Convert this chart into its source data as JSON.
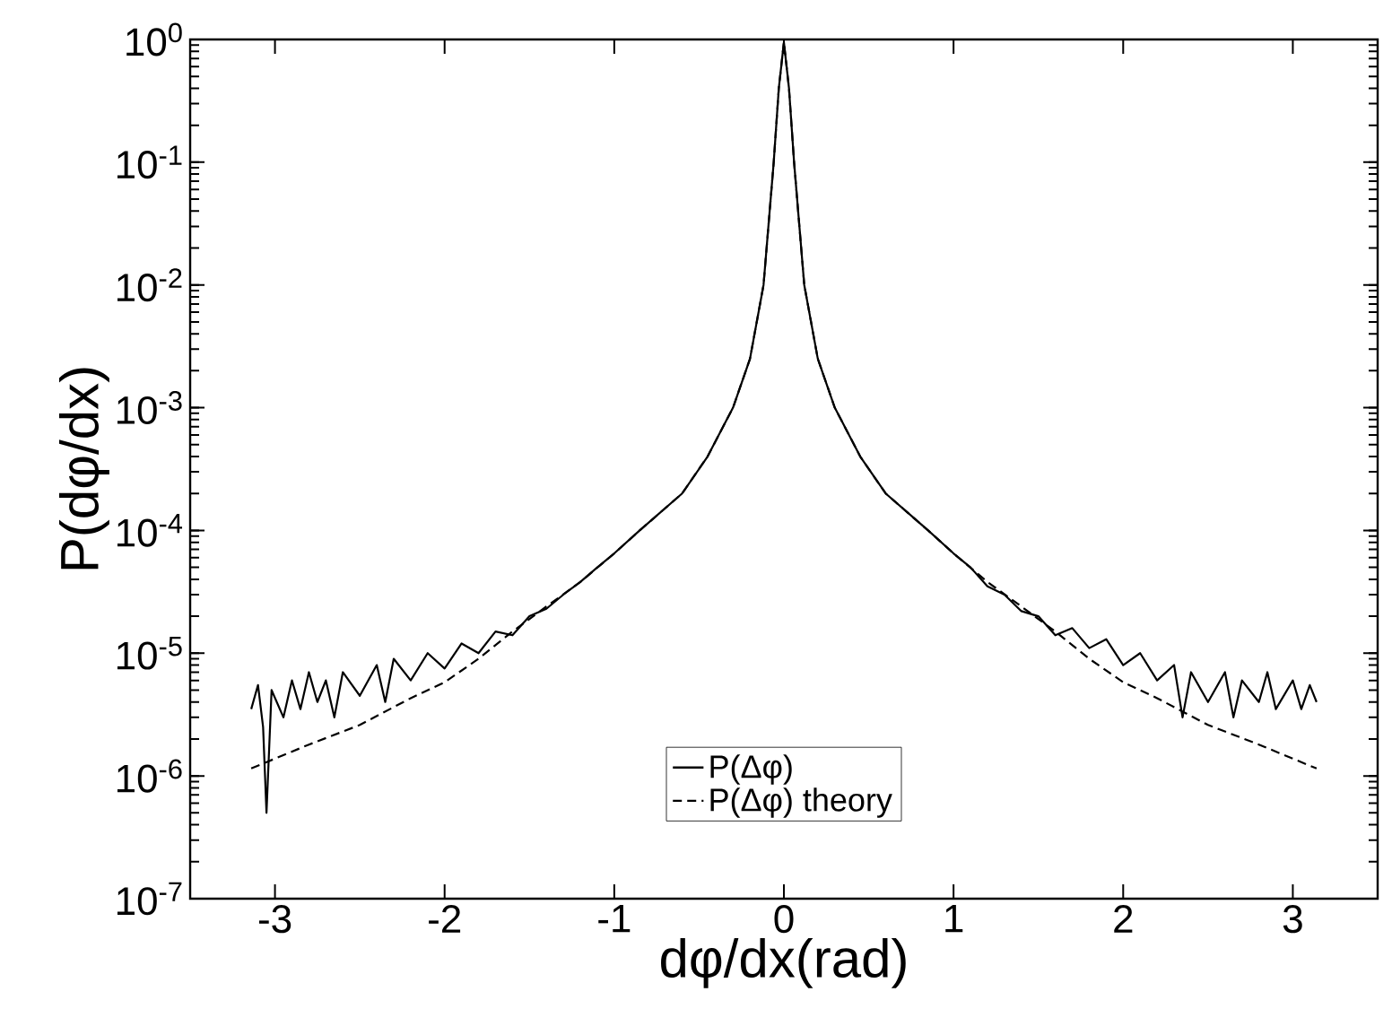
{
  "chart_data": {
    "type": "line",
    "xlabel": "dφ/dx(rad)",
    "ylabel": "P(dφ/dx)",
    "log": "y",
    "grid": false,
    "legend": "bottom",
    "marker": "none",
    "xlim": [
      -3.5,
      3.5
    ],
    "xticks": [
      -3,
      -2,
      -1,
      0,
      1,
      2,
      3
    ],
    "ylim": [
      1e-07,
      1
    ],
    "yticks": [
      {
        "value": 1e-07,
        "label": "10$^{-7}$"
      },
      {
        "value": 1e-06,
        "label": "10$^{-6}$"
      },
      {
        "value": 1e-05,
        "label": "10$^{-5}$"
      },
      {
        "value": 0.0001,
        "label": "10$^{-4}$"
      },
      {
        "value": 0.001,
        "label": "10$^{-3}$"
      },
      {
        "value": 0.01,
        "label": "10$^{-2}$"
      },
      {
        "value": 0.1,
        "label": "10$^{-1}$"
      },
      {
        "value": 1,
        "label": "10$^{0}$"
      }
    ],
    "series": [
      {
        "name": "P(Δφ)",
        "color": "#000000",
        "line_style": "solid",
        "x": [
          -3.14,
          -3.1,
          -3.07,
          -3.05,
          -3.02,
          -2.95,
          -2.9,
          -2.85,
          -2.8,
          -2.75,
          -2.7,
          -2.65,
          -2.6,
          -2.5,
          -2.4,
          -2.35,
          -2.3,
          -2.2,
          -2.1,
          -2.0,
          -1.9,
          -1.8,
          -1.7,
          -1.6,
          -1.5,
          -1.4,
          -1.3,
          -1.2,
          -1.1,
          -1.0,
          -0.85,
          -0.6,
          -0.45,
          -0.3,
          -0.2,
          -0.12,
          -0.06,
          -0.03,
          0,
          0.03,
          0.06,
          0.12,
          0.2,
          0.3,
          0.45,
          0.6,
          0.85,
          1.0,
          1.1,
          1.2,
          1.3,
          1.4,
          1.5,
          1.6,
          1.7,
          1.8,
          1.9,
          2.0,
          2.1,
          2.2,
          2.3,
          2.35,
          2.4,
          2.5,
          2.6,
          2.65,
          2.7,
          2.8,
          2.85,
          2.9,
          3.0,
          3.05,
          3.1,
          3.14
        ],
        "values": [
          3.5e-06,
          5.5e-06,
          2.5e-06,
          5e-07,
          5e-06,
          3e-06,
          6e-06,
          3.5e-06,
          7e-06,
          4e-06,
          6e-06,
          3e-06,
          7e-06,
          4.5e-06,
          8e-06,
          4e-06,
          9e-06,
          6e-06,
          1e-05,
          7.5e-06,
          1.2e-05,
          1e-05,
          1.5e-05,
          1.4e-05,
          2e-05,
          2.3e-05,
          3e-05,
          3.8e-05,
          5e-05,
          6.5e-05,
          0.0001,
          0.0002,
          0.0004,
          0.001,
          0.0025,
          0.01,
          0.1,
          0.4,
          0.95,
          0.4,
          0.1,
          0.01,
          0.0025,
          0.001,
          0.0004,
          0.0002,
          0.0001,
          6.5e-05,
          5e-05,
          3.5e-05,
          3e-05,
          2.2e-05,
          2e-05,
          1.4e-05,
          1.6e-05,
          1.1e-05,
          1.3e-05,
          8e-06,
          1e-05,
          6e-06,
          8e-06,
          3e-06,
          7e-06,
          4e-06,
          7e-06,
          3e-06,
          6e-06,
          4e-06,
          7e-06,
          3.5e-06,
          6e-06,
          3.5e-06,
          5.5e-06,
          4e-06
        ]
      },
      {
        "name": "P(Δφ) theory",
        "color": "#000000",
        "line_style": "dashed",
        "x": [
          -3.14,
          -2.8,
          -2.5,
          -2.2,
          -2.0,
          -1.8,
          -1.6,
          -1.4,
          -1.2,
          -1.0,
          -0.85,
          -0.6,
          -0.45,
          -0.3,
          -0.2,
          -0.12,
          -0.06,
          -0.03,
          0,
          0.03,
          0.06,
          0.12,
          0.2,
          0.3,
          0.45,
          0.6,
          0.85,
          1.0,
          1.2,
          1.4,
          1.6,
          1.8,
          2.0,
          2.2,
          2.5,
          2.8,
          3.14
        ],
        "values": [
          1.15e-06,
          1.8e-06,
          2.6e-06,
          4.3e-06,
          5.8e-06,
          9e-06,
          1.5e-05,
          2.4e-05,
          3.8e-05,
          6.5e-05,
          0.0001,
          0.0002,
          0.0004,
          0.001,
          0.0025,
          0.01,
          0.1,
          0.4,
          0.95,
          0.4,
          0.1,
          0.01,
          0.0025,
          0.001,
          0.0004,
          0.0002,
          0.0001,
          6.5e-05,
          3.8e-05,
          2.4e-05,
          1.5e-05,
          9e-06,
          5.8e-06,
          4.3e-06,
          2.6e-06,
          1.8e-06,
          1.15e-06
        ]
      }
    ]
  }
}
